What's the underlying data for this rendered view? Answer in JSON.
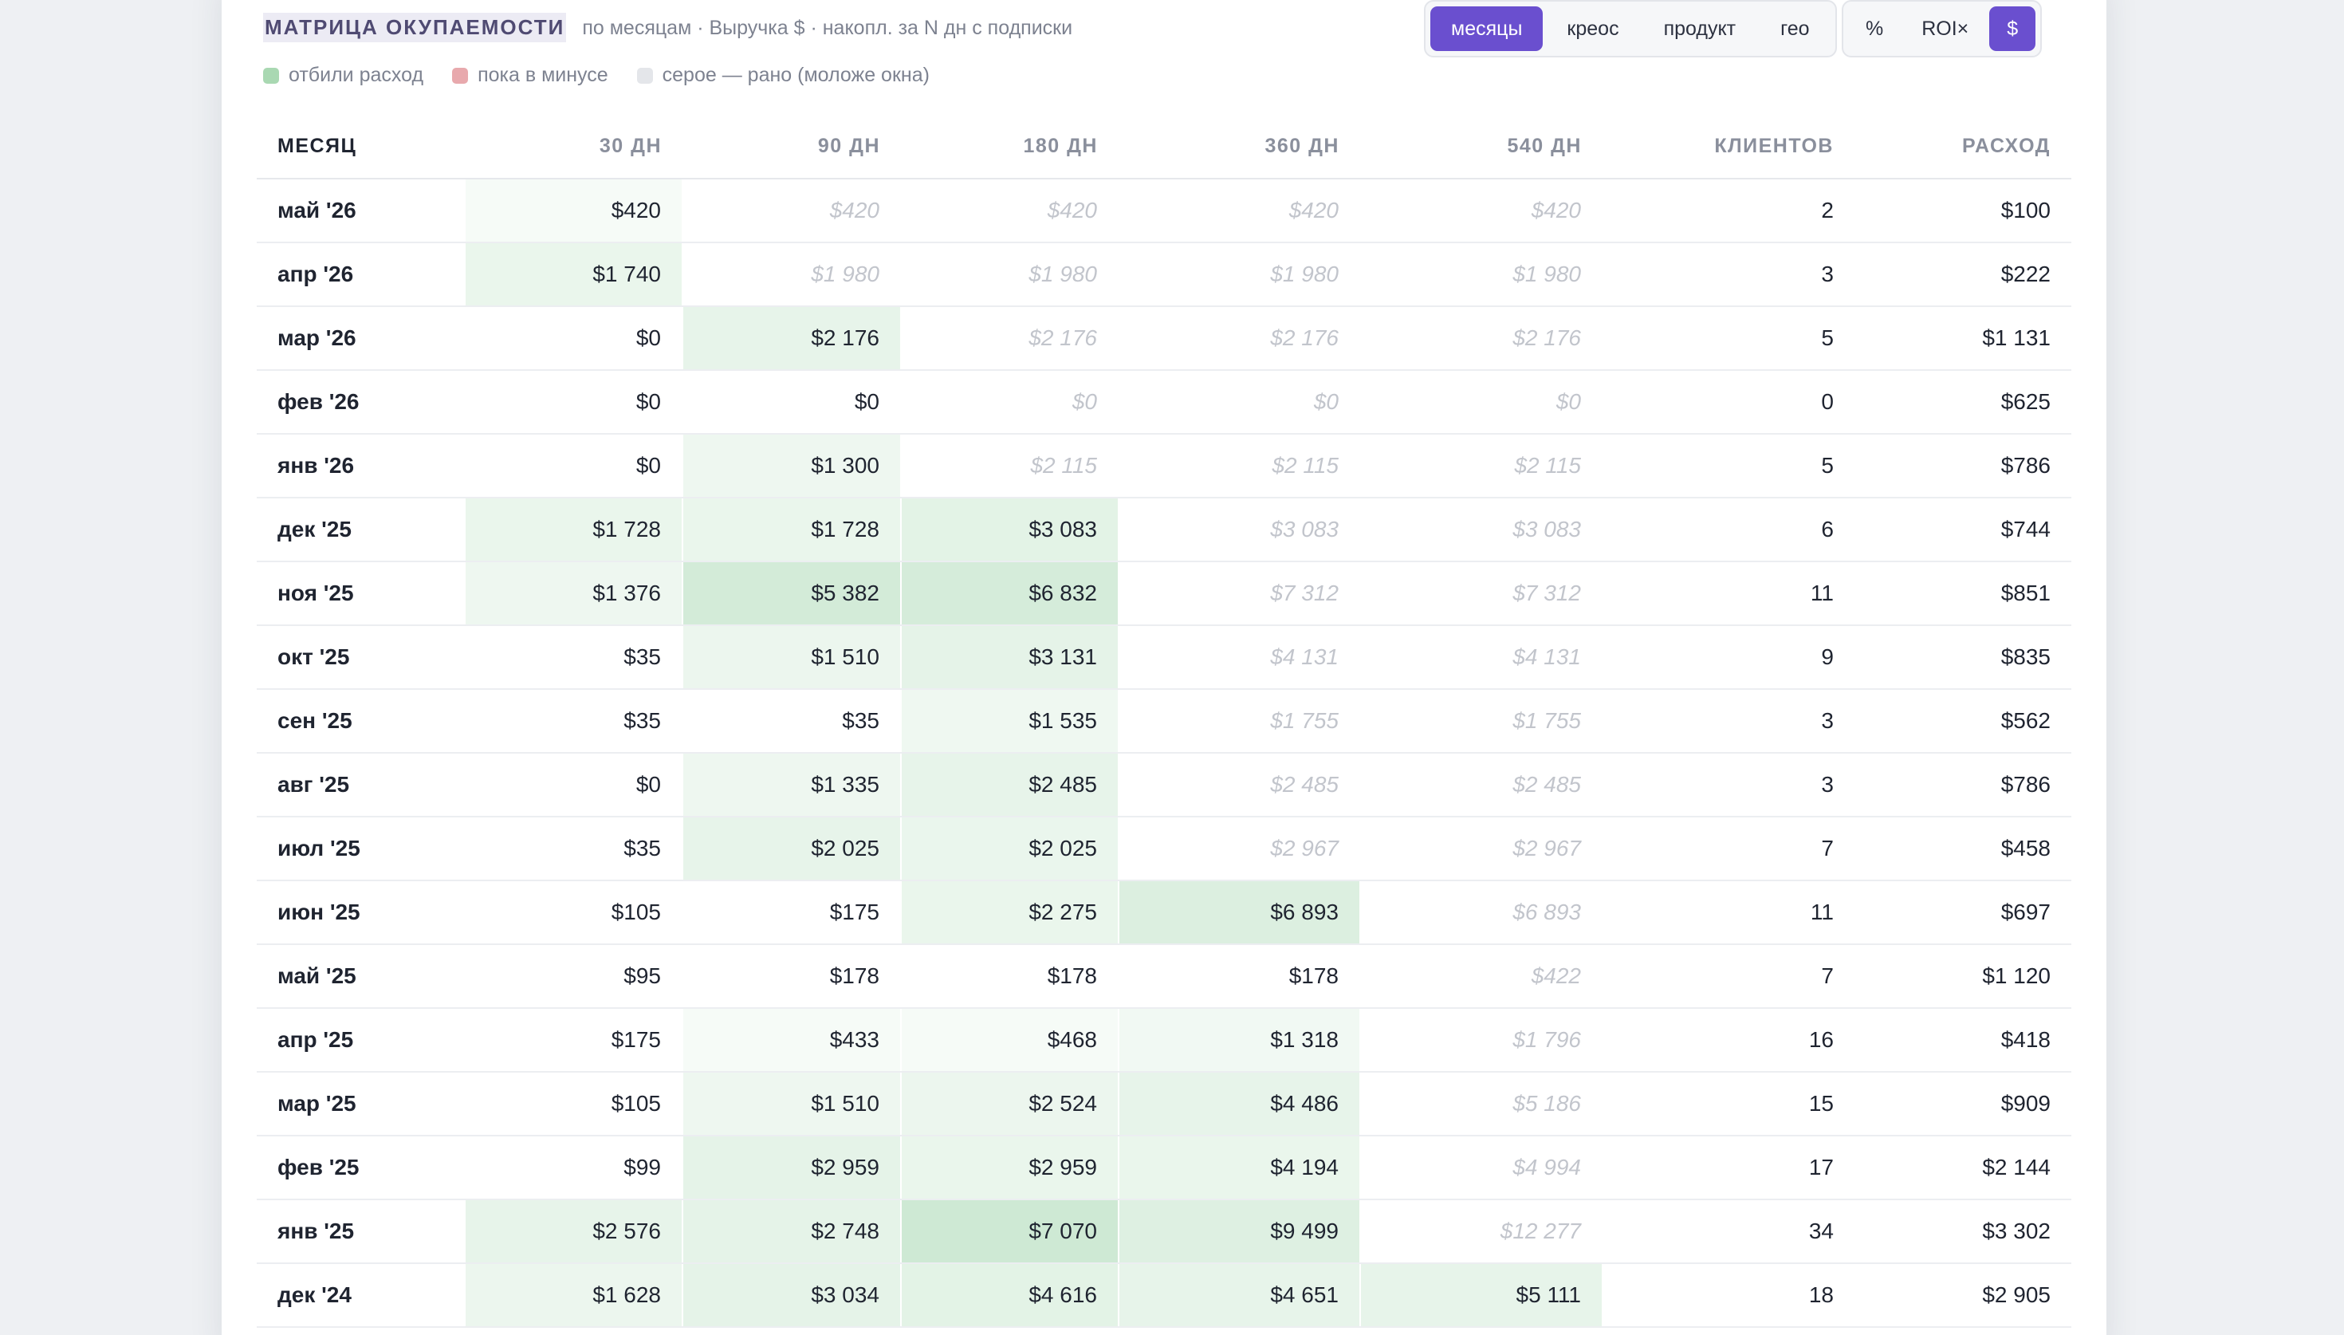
{
  "header": {
    "title": "МАТРИЦА ОКУПАЕМОСТИ",
    "subtitle": "по месяцам · Выручка $ · накопл. за N дн с подписки"
  },
  "group_tabs": [
    {
      "label": "месяцы",
      "active": true
    },
    {
      "label": "креос",
      "active": false
    },
    {
      "label": "продукт",
      "active": false
    },
    {
      "label": "гео",
      "active": false
    }
  ],
  "unit_tabs": [
    {
      "label": "%",
      "active": false
    },
    {
      "label": "ROI×",
      "active": false
    },
    {
      "label": "$",
      "active": true
    }
  ],
  "legend": [
    {
      "label": "отбили расход",
      "color": "#a9d8b2"
    },
    {
      "label": "пока в минусе",
      "color": "#e8a9ad"
    },
    {
      "label": "серое — рано (моложе окна)",
      "color": "#e4e6ea"
    }
  ],
  "columns": [
    "МЕСЯЦ",
    "30 ДН",
    "90 ДН",
    "180 ДН",
    "360 ДН",
    "540 ДН",
    "КЛИЕНТОВ",
    "РАСХОД"
  ],
  "rows": [
    {
      "month": "май '26",
      "cells": [
        {
          "v": "$420",
          "g": false,
          "t": 0.02
        },
        {
          "v": "$420",
          "g": true
        },
        {
          "v": "$420",
          "g": true
        },
        {
          "v": "$420",
          "g": true
        },
        {
          "v": "$420",
          "g": true
        }
      ],
      "clients": "2",
      "spend": "$100"
    },
    {
      "month": "апр '26",
      "cells": [
        {
          "v": "$1 740",
          "g": false,
          "t": 0.3
        },
        {
          "v": "$1 980",
          "g": true
        },
        {
          "v": "$1 980",
          "g": true
        },
        {
          "v": "$1 980",
          "g": true
        },
        {
          "v": "$1 980",
          "g": true
        }
      ],
      "clients": "3",
      "spend": "$222"
    },
    {
      "month": "мар '26",
      "cells": [
        {
          "v": "$0",
          "g": false,
          "t": 0
        },
        {
          "v": "$2 176",
          "g": false,
          "t": 0.35
        },
        {
          "v": "$2 176",
          "g": true
        },
        {
          "v": "$2 176",
          "g": true
        },
        {
          "v": "$2 176",
          "g": true
        }
      ],
      "clients": "5",
      "spend": "$1 131"
    },
    {
      "month": "фев '26",
      "cells": [
        {
          "v": "$0",
          "g": false,
          "t": 0
        },
        {
          "v": "$0",
          "g": false,
          "t": 0
        },
        {
          "v": "$0",
          "g": true
        },
        {
          "v": "$0",
          "g": true
        },
        {
          "v": "$0",
          "g": true
        }
      ],
      "clients": "0",
      "spend": "$625"
    },
    {
      "month": "янв '26",
      "cells": [
        {
          "v": "$0",
          "g": false,
          "t": 0
        },
        {
          "v": "$1 300",
          "g": false,
          "t": 0.2
        },
        {
          "v": "$2 115",
          "g": true
        },
        {
          "v": "$2 115",
          "g": true
        },
        {
          "v": "$2 115",
          "g": true
        }
      ],
      "clients": "5",
      "spend": "$786"
    },
    {
      "month": "дек '25",
      "cells": [
        {
          "v": "$1 728",
          "g": false,
          "t": 0.3
        },
        {
          "v": "$1 728",
          "g": false,
          "t": 0.3
        },
        {
          "v": "$3 083",
          "g": false,
          "t": 0.45
        },
        {
          "v": "$3 083",
          "g": true
        },
        {
          "v": "$3 083",
          "g": true
        }
      ],
      "clients": "6",
      "spend": "$744"
    },
    {
      "month": "ноя '25",
      "cells": [
        {
          "v": "$1 376",
          "g": false,
          "t": 0.2
        },
        {
          "v": "$5 382",
          "g": false,
          "t": 0.8
        },
        {
          "v": "$6 832",
          "g": false,
          "t": 0.75
        },
        {
          "v": "$7 312",
          "g": true
        },
        {
          "v": "$7 312",
          "g": true
        }
      ],
      "clients": "11",
      "spend": "$851"
    },
    {
      "month": "окт '25",
      "cells": [
        {
          "v": "$35",
          "g": false,
          "t": 0
        },
        {
          "v": "$1 510",
          "g": false,
          "t": 0.25
        },
        {
          "v": "$3 131",
          "g": false,
          "t": 0.4
        },
        {
          "v": "$4 131",
          "g": true
        },
        {
          "v": "$4 131",
          "g": true
        }
      ],
      "clients": "9",
      "spend": "$835"
    },
    {
      "month": "сен '25",
      "cells": [
        {
          "v": "$35",
          "g": false,
          "t": 0
        },
        {
          "v": "$35",
          "g": false,
          "t": 0
        },
        {
          "v": "$1 535",
          "g": false,
          "t": 0.18
        },
        {
          "v": "$1 755",
          "g": true
        },
        {
          "v": "$1 755",
          "g": true
        }
      ],
      "clients": "3",
      "spend": "$562"
    },
    {
      "month": "авг '25",
      "cells": [
        {
          "v": "$0",
          "g": false,
          "t": 0
        },
        {
          "v": "$1 335",
          "g": false,
          "t": 0.2
        },
        {
          "v": "$2 485",
          "g": false,
          "t": 0.35
        },
        {
          "v": "$2 485",
          "g": true
        },
        {
          "v": "$2 485",
          "g": true
        }
      ],
      "clients": "3",
      "spend": "$786"
    },
    {
      "month": "июл '25",
      "cells": [
        {
          "v": "$35",
          "g": false,
          "t": 0
        },
        {
          "v": "$2 025",
          "g": false,
          "t": 0.35
        },
        {
          "v": "$2 025",
          "g": false,
          "t": 0.28
        },
        {
          "v": "$2 967",
          "g": true
        },
        {
          "v": "$2 967",
          "g": true
        }
      ],
      "clients": "7",
      "spend": "$458"
    },
    {
      "month": "июн '25",
      "cells": [
        {
          "v": "$105",
          "g": false,
          "t": 0
        },
        {
          "v": "$175",
          "g": false,
          "t": 0
        },
        {
          "v": "$2 275",
          "g": false,
          "t": 0.3
        },
        {
          "v": "$6 893",
          "g": false,
          "t": 0.6
        },
        {
          "v": "$6 893",
          "g": true
        }
      ],
      "clients": "11",
      "spend": "$697"
    },
    {
      "month": "май '25",
      "cells": [
        {
          "v": "$95",
          "g": false,
          "t": 0
        },
        {
          "v": "$178",
          "g": false,
          "t": 0
        },
        {
          "v": "$178",
          "g": false,
          "t": 0
        },
        {
          "v": "$178",
          "g": false,
          "t": 0
        },
        {
          "v": "$422",
          "g": true
        }
      ],
      "clients": "7",
      "spend": "$1 120"
    },
    {
      "month": "апр '25",
      "cells": [
        {
          "v": "$175",
          "g": false,
          "t": 0
        },
        {
          "v": "$433",
          "g": false,
          "t": 0.02
        },
        {
          "v": "$468",
          "g": false,
          "t": 0.02
        },
        {
          "v": "$1 318",
          "g": false,
          "t": 0.12
        },
        {
          "v": "$1 796",
          "g": true
        }
      ],
      "clients": "16",
      "spend": "$418"
    },
    {
      "month": "мар '25",
      "cells": [
        {
          "v": "$105",
          "g": false,
          "t": 0
        },
        {
          "v": "$1 510",
          "g": false,
          "t": 0.2
        },
        {
          "v": "$2 524",
          "g": false,
          "t": 0.25
        },
        {
          "v": "$4 486",
          "g": false,
          "t": 0.35
        },
        {
          "v": "$5 186",
          "g": true
        }
      ],
      "clients": "15",
      "spend": "$909"
    },
    {
      "month": "фев '25",
      "cells": [
        {
          "v": "$99",
          "g": false,
          "t": 0
        },
        {
          "v": "$2 959",
          "g": false,
          "t": 0.4
        },
        {
          "v": "$2 959",
          "g": false,
          "t": 0.3
        },
        {
          "v": "$4 194",
          "g": false,
          "t": 0.3
        },
        {
          "v": "$4 994",
          "g": true
        }
      ],
      "clients": "17",
      "spend": "$2 144"
    },
    {
      "month": "янв '25",
      "cells": [
        {
          "v": "$2 576",
          "g": false,
          "t": 0.35
        },
        {
          "v": "$2 748",
          "g": false,
          "t": 0.4
        },
        {
          "v": "$7 070",
          "g": false,
          "t": 0.9
        },
        {
          "v": "$9 499",
          "g": false,
          "t": 0.55
        },
        {
          "v": "$12 277",
          "g": true
        }
      ],
      "clients": "34",
      "spend": "$3 302"
    },
    {
      "month": "дек '24",
      "cells": [
        {
          "v": "$1 628",
          "g": false,
          "t": 0.25
        },
        {
          "v": "$3 034",
          "g": false,
          "t": 0.4
        },
        {
          "v": "$4 616",
          "g": false,
          "t": 0.45
        },
        {
          "v": "$4 651",
          "g": false,
          "t": 0.35
        },
        {
          "v": "$5 111",
          "g": false,
          "t": 0.35
        }
      ],
      "clients": "18",
      "spend": "$2 905"
    }
  ]
}
